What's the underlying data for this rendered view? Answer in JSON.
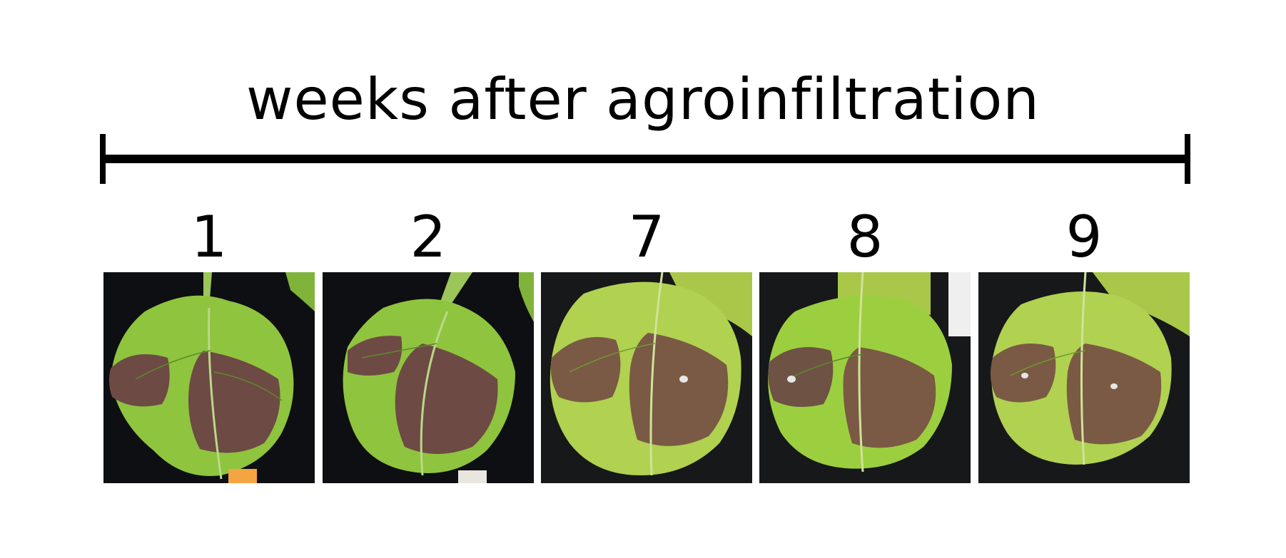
{
  "figure": {
    "title": "weeks after agroinfiltration",
    "panels": [
      {
        "label": "1",
        "icon": "leaf-photo",
        "background": "#0e0f12"
      },
      {
        "label": "2",
        "icon": "leaf-photo",
        "background": "#0e0f12"
      },
      {
        "label": "7",
        "icon": "leaf-photo",
        "background": "#17181a"
      },
      {
        "label": "8",
        "icon": "leaf-photo",
        "background": "#17181a"
      },
      {
        "label": "9",
        "icon": "leaf-photo",
        "background": "#17181a"
      }
    ],
    "colors": {
      "leaf_green": "#8fc43e",
      "leaf_yellow_green": "#a9c84a",
      "infiltrated_patch": "#6e4a44",
      "line": "#000000"
    }
  }
}
